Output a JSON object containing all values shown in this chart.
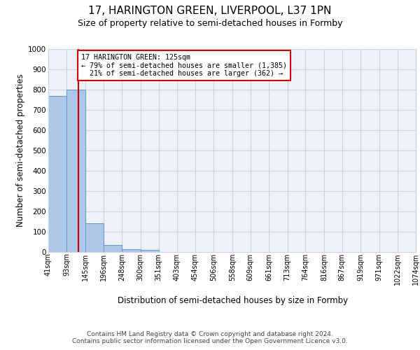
{
  "title": "17, HARINGTON GREEN, LIVERPOOL, L37 1PN",
  "subtitle": "Size of property relative to semi-detached houses in Formby",
  "xlabel": "Distribution of semi-detached houses by size in Formby",
  "ylabel": "Number of semi-detached properties",
  "bar_edges": [
    41,
    93,
    145,
    196,
    248,
    300,
    351,
    403,
    454,
    506,
    558,
    609,
    661,
    713,
    764,
    816,
    867,
    919,
    971,
    1022,
    1074
  ],
  "bar_heights": [
    770,
    800,
    140,
    35,
    15,
    10,
    0,
    0,
    0,
    0,
    0,
    0,
    0,
    0,
    0,
    0,
    0,
    0,
    0,
    0
  ],
  "bar_color": "#aec6e8",
  "bar_edge_color": "#5b9bd5",
  "property_line_x": 125,
  "pct_smaller": 79,
  "n_smaller": 1385,
  "pct_larger": 21,
  "n_larger": 362,
  "vline_color": "#cc0000",
  "ylim": [
    0,
    1000
  ],
  "yticks": [
    0,
    100,
    200,
    300,
    400,
    500,
    600,
    700,
    800,
    900,
    1000
  ],
  "grid_color": "#c8d4e8",
  "bg_color": "#eef2f8",
  "tick_label_fontsize": 7.0,
  "axis_label_fontsize": 8.5,
  "title_fontsize": 11,
  "subtitle_fontsize": 9,
  "footer_text": "Contains HM Land Registry data © Crown copyright and database right 2024.\nContains public sector information licensed under the Open Government Licence v3.0.",
  "x_tick_labels": [
    "41sqm",
    "93sqm",
    "145sqm",
    "196sqm",
    "248sqm",
    "300sqm",
    "351sqm",
    "403sqm",
    "454sqm",
    "506sqm",
    "558sqm",
    "609sqm",
    "661sqm",
    "713sqm",
    "764sqm",
    "816sqm",
    "867sqm",
    "919sqm",
    "971sqm",
    "1022sqm",
    "1074sqm"
  ]
}
